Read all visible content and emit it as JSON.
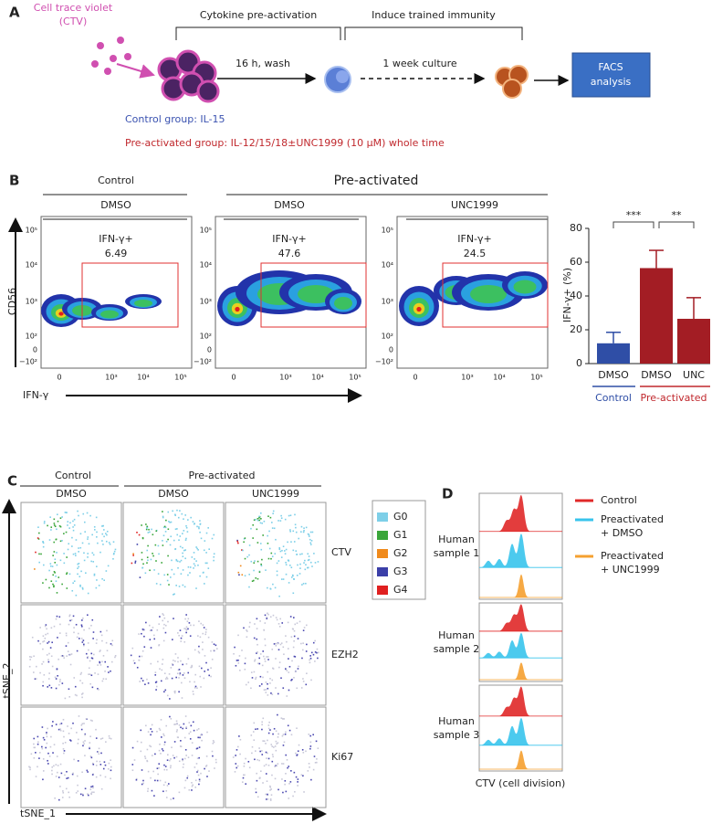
{
  "panel_a": {
    "label": "A",
    "ctv_label": [
      "Cell trace violet",
      "(CTV)"
    ],
    "stage_1": "Cytokine pre-activation",
    "stage_2": "Induce trained immunity",
    "step_1": "16 h, wash",
    "step_2": "1 week culture",
    "readout": [
      "FACS",
      "analysis"
    ],
    "control_group": "Control group: IL-15",
    "preactivated_group": "Pre-activated group: IL-12/15/18±UNC1999 (10 µM) whole time"
  },
  "panel_b": {
    "label": "B",
    "groups": [
      "Control",
      "Pre-activated"
    ],
    "plots": [
      {
        "condition": "DMSO",
        "gate": "IFN-γ+",
        "percent": 6.49
      },
      {
        "condition": "DMSO",
        "gate": "IFN-γ+",
        "percent": 47.6
      },
      {
        "condition": "UNC1999",
        "gate": "IFN-γ+",
        "percent": 24.5
      }
    ],
    "y_axis_label": "CD56",
    "x_axis_label": "IFN-γ",
    "y_tick_labels": [
      "10⁵",
      "10⁴",
      "10³",
      "10²",
      "0",
      "−10²"
    ],
    "x_tick_labels": [
      "0",
      "10³",
      "10⁴",
      "10⁵"
    ]
  },
  "chart_data": {
    "type": "bar",
    "y_label": "IFN-γ+ (%)",
    "categories": [
      "DMSO",
      "DMSO",
      "UNC"
    ],
    "values": [
      12,
      56.5,
      26.5
    ],
    "errors": [
      6.5,
      10.5,
      12.5
    ],
    "colors": [
      "#2f4ea6",
      "#a31d24",
      "#a31d24"
    ],
    "group_labels": [
      "Control",
      "Pre-activated"
    ],
    "group_colors": [
      "#2f4ea6",
      "#c0282d"
    ],
    "significance": [
      "***",
      "**"
    ],
    "ylim": [
      0,
      80
    ],
    "yticks": [
      0,
      20,
      40,
      60,
      80
    ]
  },
  "panel_c": {
    "label": "C",
    "groups": [
      "Control",
      "Pre-activated"
    ],
    "columns": [
      "DMSO",
      "DMSO",
      "UNC1999"
    ],
    "rows": [
      "CTV",
      "EZH2",
      "Ki67"
    ],
    "legend": [
      {
        "name": "G0",
        "color": "#7dcfe8"
      },
      {
        "name": "G1",
        "color": "#3aa63a"
      },
      {
        "name": "G2",
        "color": "#f08a1c"
      },
      {
        "name": "G3",
        "color": "#3b3fa8"
      },
      {
        "name": "G4",
        "color": "#e02020"
      }
    ],
    "y_axis_label": "tSNE_2",
    "x_axis_label": "tSNE_1"
  },
  "panel_d": {
    "label": "D",
    "legend": [
      {
        "lines": [
          "Control"
        ],
        "color": "#e02828"
      },
      {
        "lines": [
          "Preactivated",
          "+ DMSO"
        ],
        "color": "#38c4ec"
      },
      {
        "lines": [
          "Preactivated",
          "+ UNC1999"
        ],
        "color": "#f5a030"
      }
    ],
    "samples": [
      [
        "Human",
        "sample 1"
      ],
      [
        "Human",
        "sample 2"
      ],
      [
        "Human",
        "sample 3"
      ]
    ],
    "x_axis_label": "CTV (cell division)"
  }
}
